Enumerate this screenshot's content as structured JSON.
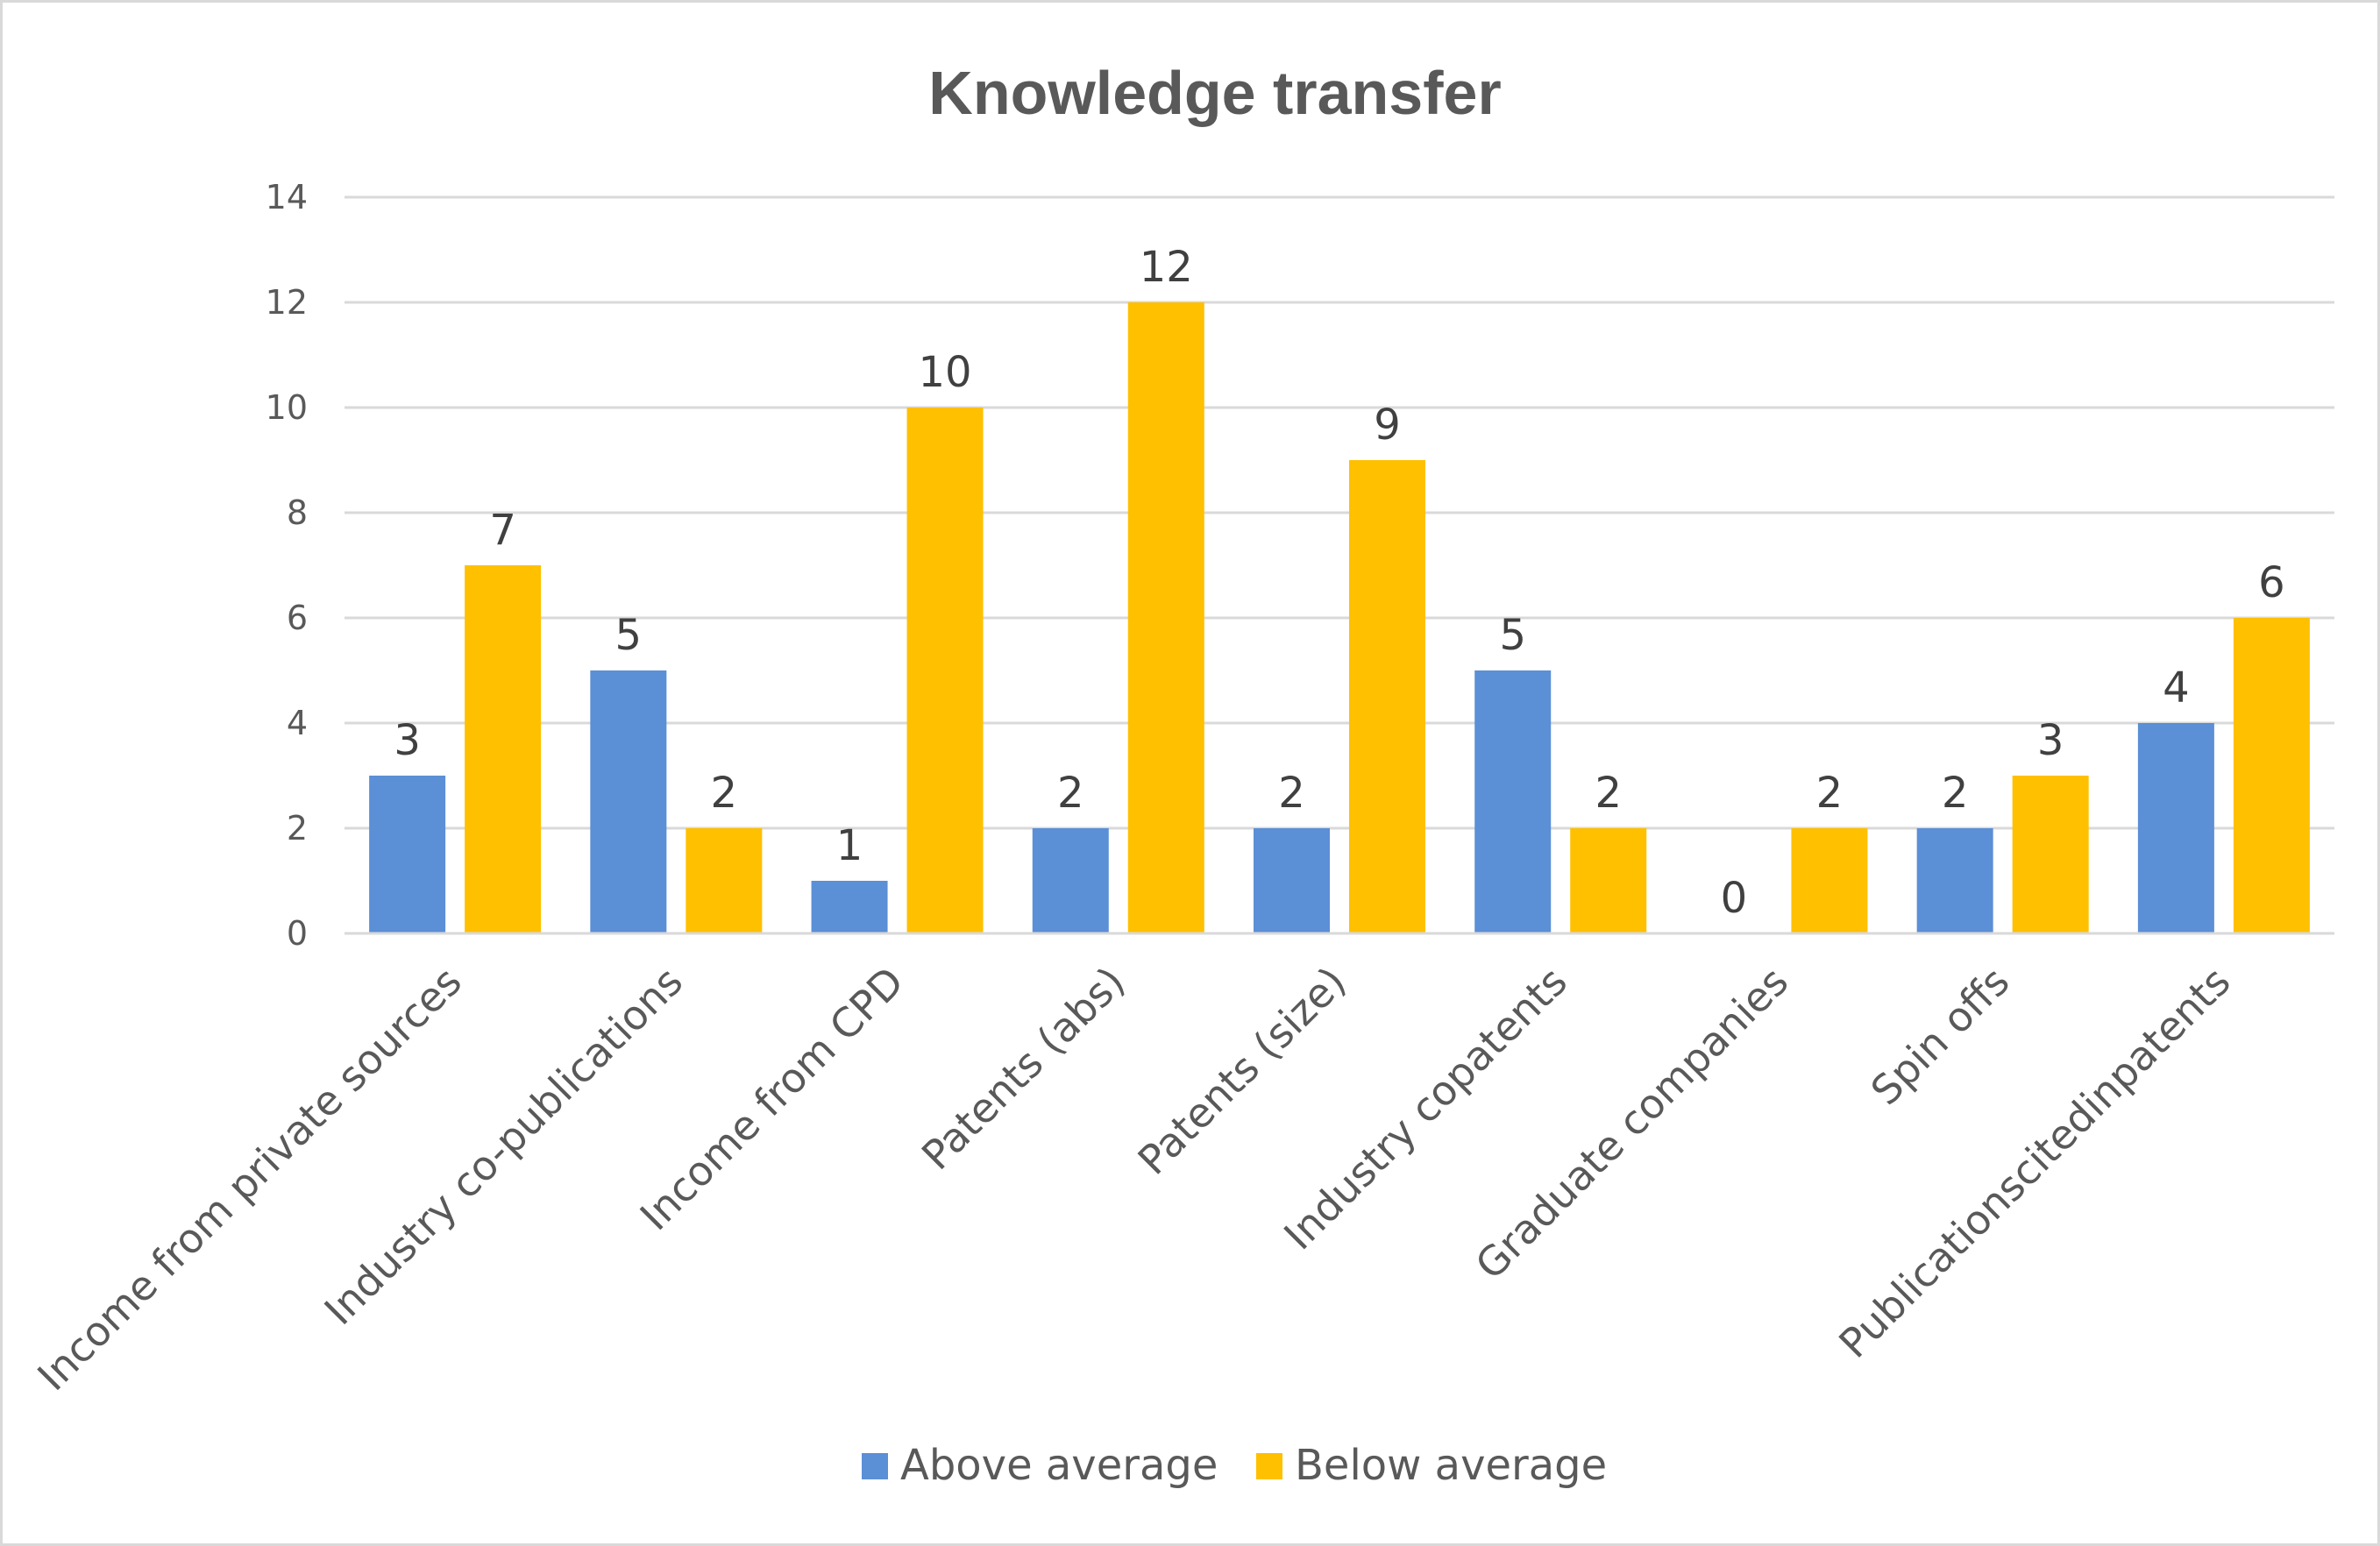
{
  "chart_data": {
    "type": "bar",
    "title": "Knowledge transfer",
    "xlabel": "",
    "ylabel": "",
    "ylim": [
      0,
      14
    ],
    "yticks": [
      "0",
      "2",
      "4",
      "6",
      "8",
      "10",
      "12",
      "14"
    ],
    "grid": true,
    "legend_position": "bottom",
    "categories": [
      "Income from private sources",
      "Industry co-publications",
      "Income from CPD",
      "Patents (abs)",
      "Patents (size)",
      "Industry copatents",
      "Graduate companies",
      "Spin offs",
      "Publicationscitedinpatents"
    ],
    "series": [
      {
        "name": "Above average",
        "color": "#5b8fd6",
        "values": [
          3,
          5,
          1,
          2,
          2,
          5,
          0,
          2,
          4
        ]
      },
      {
        "name": "Below average",
        "color": "#ffc000",
        "values": [
          7,
          2,
          10,
          12,
          9,
          2,
          2,
          3,
          6
        ]
      }
    ]
  }
}
